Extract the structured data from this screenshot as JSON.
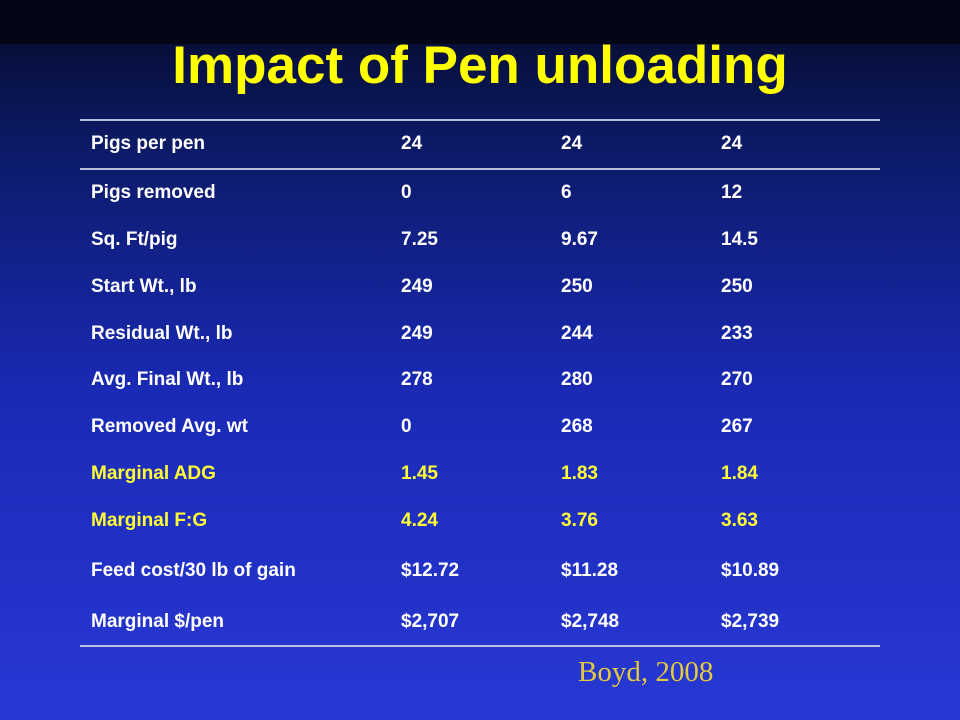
{
  "slide": {
    "title": "Impact of Pen unloading",
    "source": "Boyd, 2008"
  },
  "table": {
    "rows": [
      {
        "label": "Pigs per pen",
        "values": [
          "24",
          "24",
          "24"
        ]
      },
      {
        "label": "Pigs removed",
        "values": [
          "0",
          "6",
          "12"
        ]
      },
      {
        "label": "Sq. Ft/pig",
        "values": [
          "7.25",
          "9.67",
          "14.5"
        ]
      },
      {
        "label": "Start Wt., lb",
        "values": [
          "249",
          "250",
          "250"
        ]
      },
      {
        "label": "Residual Wt., lb",
        "values": [
          "249",
          "244",
          "233"
        ]
      },
      {
        "label": "Avg. Final Wt., lb",
        "values": [
          "278",
          "280",
          "270"
        ]
      },
      {
        "label": "Removed Avg. wt",
        "values": [
          "0",
          "268",
          "267"
        ]
      },
      {
        "label": "Marginal ADG",
        "values": [
          "1.45",
          "1.83",
          "1.84"
        ]
      },
      {
        "label": "Marginal F:G",
        "values": [
          "4.24",
          "3.76",
          "3.63"
        ]
      },
      {
        "label": "Feed cost/30 lb of gain",
        "values": [
          "$12.72",
          "$11.28",
          "$10.89"
        ]
      },
      {
        "label": "Marginal $/pen",
        "values": [
          "$2,707",
          "$2,748",
          "$2,739"
        ]
      }
    ]
  },
  "colors": {
    "title": "#ffff00",
    "highlight_text": "#ffff33",
    "body_text": "#ffffff",
    "source_text": "#e3c93e",
    "background_top": "#050a26",
    "background_bottom": "#2838d4"
  }
}
